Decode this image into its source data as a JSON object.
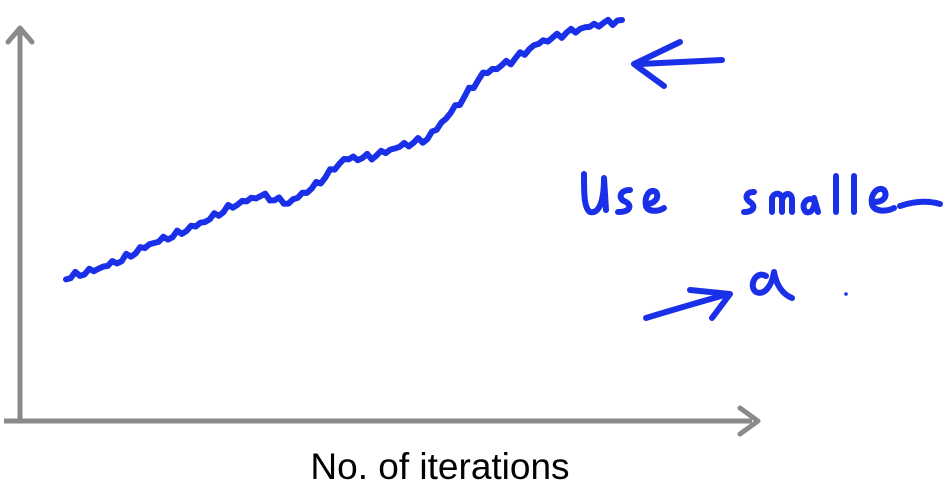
{
  "colors": {
    "axis": "#8a8a8a",
    "ink": "#1a2fe8",
    "text": "#000000"
  },
  "chart_data": {
    "type": "line",
    "title": "",
    "xlabel": "No. of iterations",
    "ylabel": "",
    "xticks": [],
    "yticks": [],
    "x": [
      0,
      1,
      2,
      3,
      4,
      5,
      6,
      7,
      8,
      9,
      10,
      11,
      12,
      13,
      14,
      15,
      16,
      17,
      18,
      19,
      20
    ],
    "series": [
      {
        "values": [
          0.0,
          0.03,
          0.07,
          0.13,
          0.17,
          0.22,
          0.28,
          0.32,
          0.29,
          0.36,
          0.46,
          0.47,
          0.51,
          0.54,
          0.66,
          0.79,
          0.84,
          0.91,
          0.95,
          0.98,
          1.0
        ]
      }
    ],
    "grid": false,
    "legend": "none",
    "annotations": [
      {
        "kind": "arrow",
        "direction": "left",
        "points_to": "curve-end"
      },
      {
        "kind": "handwritten-text",
        "text": "Use smaller"
      },
      {
        "kind": "handwritten-text",
        "text": "→ α"
      }
    ]
  }
}
